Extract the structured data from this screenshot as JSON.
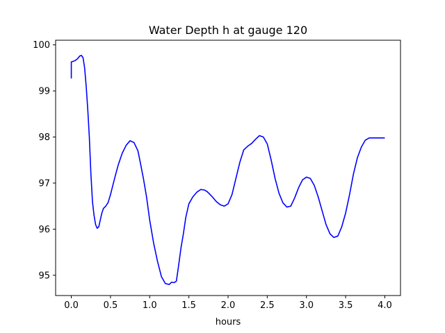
{
  "chart_data": {
    "type": "line",
    "title": "Water Depth h at gauge 120",
    "xlabel": "hours",
    "ylabel": "",
    "xlim": [
      -0.2,
      4.2
    ],
    "ylim": [
      94.56,
      100.1
    ],
    "x_ticks": [
      0.0,
      0.5,
      1.0,
      1.5,
      2.0,
      2.5,
      3.0,
      3.5,
      4.0
    ],
    "x_tick_labels": [
      "0.0",
      "0.5",
      "1.0",
      "1.5",
      "2.0",
      "2.5",
      "3.0",
      "3.5",
      "4.0"
    ],
    "y_ticks": [
      95,
      96,
      97,
      98,
      99,
      100
    ],
    "y_tick_labels": [
      "95",
      "96",
      "97",
      "98",
      "99",
      "100"
    ],
    "grid": false,
    "line_color": "#0000ff",
    "series": [
      {
        "x": [
          0.0,
          0.0,
          0.02,
          0.05,
          0.08,
          0.11,
          0.13,
          0.15,
          0.17,
          0.19,
          0.21,
          0.23,
          0.25,
          0.27,
          0.29,
          0.31,
          0.33,
          0.35,
          0.37,
          0.39,
          0.41,
          0.44,
          0.47,
          0.5,
          0.53,
          0.56,
          0.6,
          0.65,
          0.7,
          0.75,
          0.8,
          0.85,
          0.88,
          0.92,
          0.96,
          1.0,
          1.05,
          1.1,
          1.15,
          1.2,
          1.25,
          1.28,
          1.31,
          1.34,
          1.36,
          1.38,
          1.4,
          1.43,
          1.46,
          1.5,
          1.55,
          1.6,
          1.65,
          1.7,
          1.73,
          1.76,
          1.8,
          1.85,
          1.9,
          1.95,
          2.0,
          2.05,
          2.1,
          2.15,
          2.2,
          2.25,
          2.3,
          2.35,
          2.4,
          2.45,
          2.5,
          2.55,
          2.6,
          2.65,
          2.7,
          2.75,
          2.8,
          2.85,
          2.9,
          2.95,
          3.0,
          3.05,
          3.1,
          3.15,
          3.2,
          3.25,
          3.3,
          3.35,
          3.4,
          3.45,
          3.5,
          3.55,
          3.6,
          3.65,
          3.7,
          3.75,
          3.8,
          3.85,
          3.9,
          3.95,
          4.0
        ],
        "y": [
          99.27,
          99.63,
          99.64,
          99.66,
          99.7,
          99.76,
          99.77,
          99.72,
          99.5,
          99.1,
          98.6,
          98.0,
          97.2,
          96.6,
          96.3,
          96.1,
          96.02,
          96.05,
          96.2,
          96.35,
          96.45,
          96.5,
          96.58,
          96.75,
          96.95,
          97.15,
          97.4,
          97.65,
          97.82,
          97.92,
          97.88,
          97.7,
          97.45,
          97.1,
          96.7,
          96.2,
          95.7,
          95.3,
          94.97,
          94.82,
          94.8,
          94.85,
          94.84,
          94.87,
          95.1,
          95.35,
          95.6,
          95.9,
          96.25,
          96.55,
          96.7,
          96.8,
          96.86,
          96.85,
          96.82,
          96.77,
          96.7,
          96.6,
          96.53,
          96.5,
          96.55,
          96.75,
          97.1,
          97.45,
          97.72,
          97.8,
          97.86,
          97.95,
          98.03,
          98.0,
          97.85,
          97.5,
          97.1,
          96.78,
          96.57,
          96.48,
          96.5,
          96.68,
          96.9,
          97.07,
          97.13,
          97.1,
          96.95,
          96.7,
          96.4,
          96.1,
          95.9,
          95.82,
          95.85,
          96.05,
          96.35,
          96.75,
          97.2,
          97.55,
          97.78,
          97.93,
          97.98,
          97.98,
          97.98,
          97.98,
          97.98
        ]
      }
    ]
  }
}
